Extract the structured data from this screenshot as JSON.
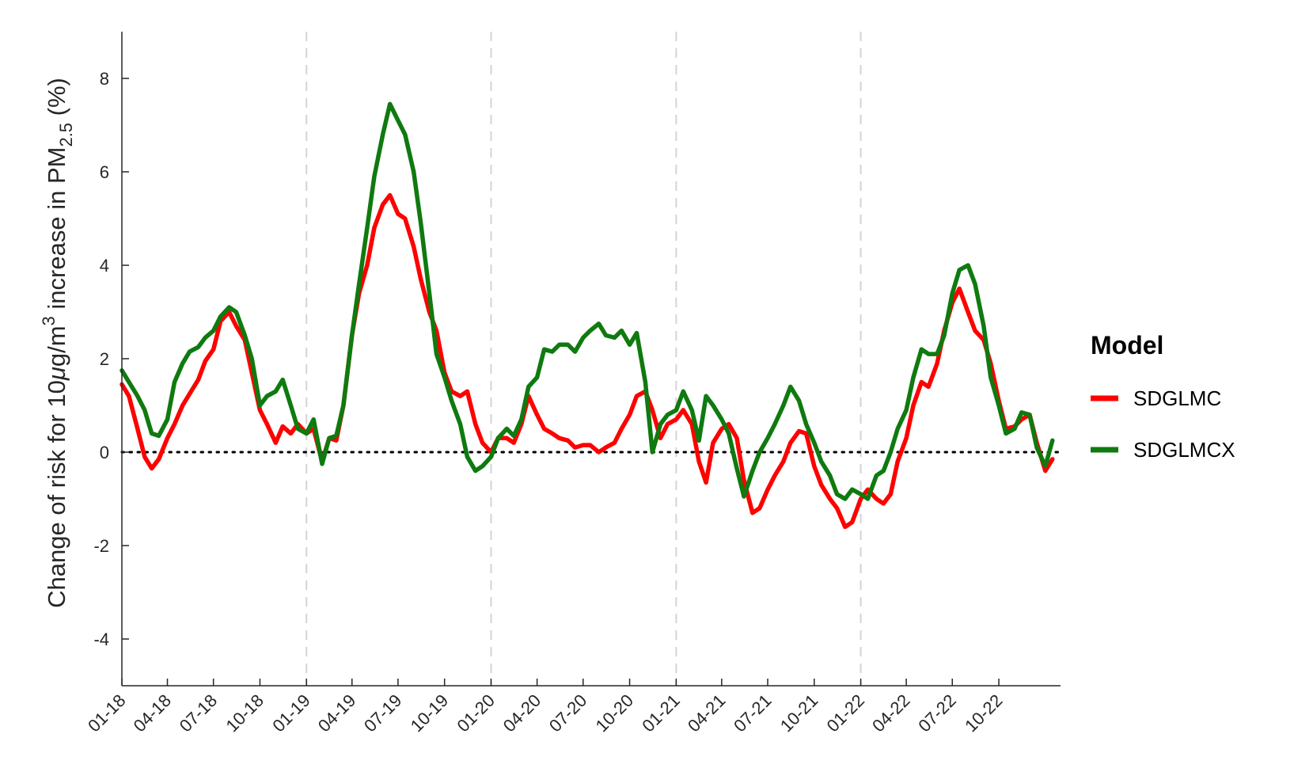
{
  "chart_data": {
    "type": "line",
    "ylabel": {
      "prefix": "Change of risk for 10",
      "mu": "μ",
      "unit": "g/m",
      "unit_sup": "3",
      "mid": " increase in PM",
      "sub": "2.5",
      "suffix": " (%)"
    },
    "ylim": [
      -5,
      9
    ],
    "yticks": [
      -4,
      -2,
      0,
      2,
      4,
      6,
      8
    ],
    "ytick_labels": [
      "-4",
      "-2",
      "0",
      "2",
      "4",
      "6",
      "8"
    ],
    "xlim": [
      "2018-01-01",
      "2023-01-31"
    ],
    "xticks": [
      "2018-01-01",
      "2018-04-01",
      "2018-07-01",
      "2018-10-01",
      "2019-01-01",
      "2019-04-01",
      "2019-07-01",
      "2019-10-01",
      "2020-01-01",
      "2020-04-01",
      "2020-07-01",
      "2020-10-01",
      "2021-01-01",
      "2021-04-01",
      "2021-07-01",
      "2021-10-01",
      "2022-01-01",
      "2022-04-01",
      "2022-07-01",
      "2022-10-01"
    ],
    "xtick_labels": [
      "01-18",
      "04-18",
      "07-18",
      "10-18",
      "01-19",
      "04-19",
      "07-19",
      "10-19",
      "01-20",
      "04-20",
      "07-20",
      "10-20",
      "01-21",
      "04-21",
      "07-21",
      "10-21",
      "01-22",
      "04-22",
      "07-22",
      "10-22"
    ],
    "vlines": [
      "2019-01-01",
      "2020-01-01",
      "2021-01-01",
      "2022-01-01"
    ],
    "hline": 0,
    "grid": false,
    "legend": {
      "title": "Model",
      "placement": "right"
    },
    "series": [
      {
        "name": "SDGLMC",
        "color": "#ff0000",
        "x": [
          "2018-01-01",
          "2018-01-15",
          "2018-02-01",
          "2018-02-15",
          "2018-03-01",
          "2018-03-15",
          "2018-04-01",
          "2018-04-15",
          "2018-05-01",
          "2018-05-15",
          "2018-06-01",
          "2018-06-15",
          "2018-07-01",
          "2018-07-15",
          "2018-08-01",
          "2018-08-15",
          "2018-09-01",
          "2018-09-15",
          "2018-10-01",
          "2018-10-15",
          "2018-11-01",
          "2018-11-15",
          "2018-12-01",
          "2018-12-15",
          "2019-01-01",
          "2019-01-15",
          "2019-02-01",
          "2019-02-15",
          "2019-03-01",
          "2019-03-15",
          "2019-04-01",
          "2019-04-15",
          "2019-05-01",
          "2019-05-15",
          "2019-06-01",
          "2019-06-15",
          "2019-07-01",
          "2019-07-15",
          "2019-08-01",
          "2019-08-15",
          "2019-09-01",
          "2019-09-15",
          "2019-10-01",
          "2019-10-15",
          "2019-11-01",
          "2019-11-15",
          "2019-12-01",
          "2019-12-15",
          "2020-01-01",
          "2020-01-15",
          "2020-02-01",
          "2020-02-15",
          "2020-03-01",
          "2020-03-15",
          "2020-04-01",
          "2020-04-15",
          "2020-05-01",
          "2020-05-15",
          "2020-06-01",
          "2020-06-15",
          "2020-07-01",
          "2020-07-15",
          "2020-08-01",
          "2020-08-15",
          "2020-09-01",
          "2020-09-15",
          "2020-10-01",
          "2020-10-15",
          "2020-11-01",
          "2020-11-15",
          "2020-12-01",
          "2020-12-15",
          "2021-01-01",
          "2021-01-15",
          "2021-02-01",
          "2021-02-15",
          "2021-03-01",
          "2021-03-15",
          "2021-04-01",
          "2021-04-15",
          "2021-05-01",
          "2021-05-15",
          "2021-06-01",
          "2021-06-15",
          "2021-07-01",
          "2021-07-15",
          "2021-08-01",
          "2021-08-15",
          "2021-09-01",
          "2021-09-15",
          "2021-10-01",
          "2021-10-15",
          "2021-11-01",
          "2021-11-15",
          "2021-12-01",
          "2021-12-15",
          "2022-01-01",
          "2022-01-15",
          "2022-02-01",
          "2022-02-15",
          "2022-03-01",
          "2022-03-15",
          "2022-04-01",
          "2022-04-15",
          "2022-05-01",
          "2022-05-15",
          "2022-06-01",
          "2022-06-15",
          "2022-07-01",
          "2022-07-15",
          "2022-08-01",
          "2022-08-15",
          "2022-09-01",
          "2022-09-15",
          "2022-10-01",
          "2022-10-15",
          "2022-11-01",
          "2022-11-15",
          "2022-12-01",
          "2022-12-15",
          "2023-01-01",
          "2023-01-15"
        ],
        "y": [
          1.45,
          1.2,
          0.5,
          -0.1,
          -0.35,
          -0.15,
          0.3,
          0.6,
          1.0,
          1.25,
          1.55,
          1.95,
          2.2,
          2.8,
          3.0,
          2.7,
          2.4,
          1.7,
          0.9,
          0.6,
          0.2,
          0.55,
          0.4,
          0.6,
          0.4,
          0.5,
          -0.2,
          0.3,
          0.25,
          1.0,
          2.5,
          3.4,
          4.0,
          4.8,
          5.3,
          5.5,
          5.1,
          5.0,
          4.4,
          3.7,
          3.0,
          2.6,
          1.7,
          1.3,
          1.2,
          1.3,
          0.6,
          0.2,
          0.0,
          0.3,
          0.3,
          0.2,
          0.6,
          1.2,
          0.8,
          0.5,
          0.4,
          0.3,
          0.25,
          0.1,
          0.15,
          0.15,
          0.0,
          0.1,
          0.2,
          0.5,
          0.8,
          1.2,
          1.3,
          0.9,
          0.3,
          0.6,
          0.7,
          0.9,
          0.6,
          -0.2,
          -0.65,
          0.2,
          0.5,
          0.6,
          0.3,
          -0.6,
          -1.3,
          -1.2,
          -0.8,
          -0.5,
          -0.2,
          0.2,
          0.45,
          0.4,
          -0.3,
          -0.7,
          -1.0,
          -1.2,
          -1.6,
          -1.5,
          -1.0,
          -0.8,
          -1.0,
          -1.1,
          -0.9,
          -0.2,
          0.3,
          1.0,
          1.5,
          1.4,
          1.9,
          2.6,
          3.2,
          3.5,
          3.0,
          2.6,
          2.4,
          1.9,
          1.1,
          0.5,
          0.55,
          0.7,
          0.8,
          0.2,
          -0.4,
          -0.15
        ]
      },
      {
        "name": "SDGLMCX",
        "color": "#0f7a0f",
        "x": [
          "2018-01-01",
          "2018-01-15",
          "2018-02-01",
          "2018-02-15",
          "2018-03-01",
          "2018-03-15",
          "2018-04-01",
          "2018-04-15",
          "2018-05-01",
          "2018-05-15",
          "2018-06-01",
          "2018-06-15",
          "2018-07-01",
          "2018-07-15",
          "2018-08-01",
          "2018-08-15",
          "2018-09-01",
          "2018-09-15",
          "2018-10-01",
          "2018-10-15",
          "2018-11-01",
          "2018-11-15",
          "2018-12-01",
          "2018-12-15",
          "2019-01-01",
          "2019-01-15",
          "2019-02-01",
          "2019-02-15",
          "2019-03-01",
          "2019-03-15",
          "2019-04-01",
          "2019-04-15",
          "2019-05-01",
          "2019-05-15",
          "2019-06-01",
          "2019-06-15",
          "2019-07-01",
          "2019-07-15",
          "2019-08-01",
          "2019-08-15",
          "2019-09-01",
          "2019-09-15",
          "2019-10-01",
          "2019-10-15",
          "2019-11-01",
          "2019-11-15",
          "2019-12-01",
          "2019-12-15",
          "2020-01-01",
          "2020-01-15",
          "2020-02-01",
          "2020-02-15",
          "2020-03-01",
          "2020-03-15",
          "2020-04-01",
          "2020-04-15",
          "2020-05-01",
          "2020-05-15",
          "2020-06-01",
          "2020-06-15",
          "2020-07-01",
          "2020-07-15",
          "2020-08-01",
          "2020-08-15",
          "2020-09-01",
          "2020-09-15",
          "2020-10-01",
          "2020-10-15",
          "2020-11-01",
          "2020-11-15",
          "2020-12-01",
          "2020-12-15",
          "2021-01-01",
          "2021-01-15",
          "2021-02-01",
          "2021-02-15",
          "2021-03-01",
          "2021-03-15",
          "2021-04-01",
          "2021-04-15",
          "2021-05-01",
          "2021-05-15",
          "2021-06-01",
          "2021-06-15",
          "2021-07-01",
          "2021-07-15",
          "2021-08-01",
          "2021-08-15",
          "2021-09-01",
          "2021-09-15",
          "2021-10-01",
          "2021-10-15",
          "2021-11-01",
          "2021-11-15",
          "2021-12-01",
          "2021-12-15",
          "2022-01-01",
          "2022-01-15",
          "2022-02-01",
          "2022-02-15",
          "2022-03-01",
          "2022-03-15",
          "2022-04-01",
          "2022-04-15",
          "2022-05-01",
          "2022-05-15",
          "2022-06-01",
          "2022-06-15",
          "2022-07-01",
          "2022-07-15",
          "2022-08-01",
          "2022-08-15",
          "2022-09-01",
          "2022-09-15",
          "2022-10-01",
          "2022-10-15",
          "2022-11-01",
          "2022-11-15",
          "2022-12-01",
          "2022-12-15",
          "2023-01-01",
          "2023-01-15"
        ],
        "y": [
          1.75,
          1.5,
          1.2,
          0.9,
          0.4,
          0.35,
          0.7,
          1.5,
          1.9,
          2.15,
          2.25,
          2.45,
          2.6,
          2.9,
          3.1,
          3.0,
          2.5,
          2.0,
          1.0,
          1.2,
          1.3,
          1.55,
          1.0,
          0.5,
          0.4,
          0.7,
          -0.25,
          0.3,
          0.35,
          1.0,
          2.5,
          3.6,
          4.8,
          5.9,
          6.8,
          7.45,
          7.1,
          6.8,
          6.0,
          4.9,
          3.4,
          2.1,
          1.6,
          1.1,
          0.6,
          -0.1,
          -0.4,
          -0.3,
          -0.1,
          0.3,
          0.5,
          0.35,
          0.7,
          1.4,
          1.6,
          2.2,
          2.15,
          2.3,
          2.3,
          2.15,
          2.45,
          2.6,
          2.75,
          2.5,
          2.45,
          2.6,
          2.3,
          2.55,
          1.5,
          0.0,
          0.6,
          0.8,
          0.9,
          1.3,
          0.9,
          0.25,
          1.2,
          1.0,
          0.7,
          0.4,
          -0.35,
          -0.95,
          -0.4,
          0.0,
          0.3,
          0.6,
          1.0,
          1.4,
          1.1,
          0.6,
          0.2,
          -0.2,
          -0.5,
          -0.9,
          -1.0,
          -0.8,
          -0.9,
          -1.0,
          -0.5,
          -0.4,
          0.0,
          0.5,
          0.9,
          1.6,
          2.2,
          2.1,
          2.1,
          2.5,
          3.4,
          3.9,
          4.0,
          3.6,
          2.7,
          1.6,
          1.0,
          0.4,
          0.5,
          0.85,
          0.8,
          0.1,
          -0.3,
          0.25
        ]
      }
    ]
  }
}
